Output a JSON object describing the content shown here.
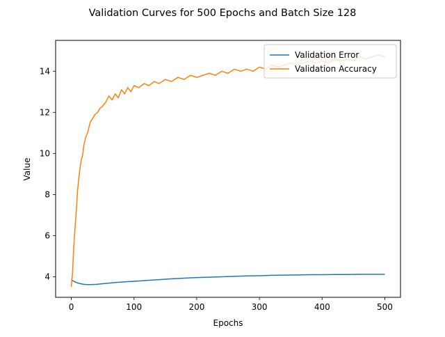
{
  "chart_data": {
    "type": "line",
    "title": "Validation Curves for 500 Epochs and Batch Size 128",
    "xlabel": "Epochs",
    "ylabel": "Value",
    "xlim": [
      -25,
      525
    ],
    "ylim": [
      3.0,
      15.5
    ],
    "xticks": [
      0,
      100,
      200,
      300,
      400,
      500
    ],
    "yticks": [
      4,
      6,
      8,
      10,
      12,
      14
    ],
    "grid": false,
    "legend_position": "top-right",
    "series": [
      {
        "name": "Validation Error",
        "color": "#1f77b4",
        "x": [
          0,
          5,
          10,
          15,
          20,
          25,
          30,
          40,
          50,
          60,
          70,
          80,
          90,
          100,
          120,
          140,
          160,
          180,
          200,
          220,
          240,
          260,
          280,
          300,
          320,
          340,
          360,
          380,
          400,
          420,
          440,
          460,
          480,
          500
        ],
        "values": [
          3.85,
          3.76,
          3.7,
          3.66,
          3.63,
          3.62,
          3.62,
          3.63,
          3.66,
          3.69,
          3.72,
          3.74,
          3.76,
          3.78,
          3.82,
          3.86,
          3.9,
          3.93,
          3.96,
          3.98,
          4.0,
          4.02,
          4.04,
          4.05,
          4.07,
          4.08,
          4.09,
          4.1,
          4.1,
          4.11,
          4.11,
          4.12,
          4.12,
          4.12
        ]
      },
      {
        "name": "Validation Accuracy",
        "color": "#ff7f0e",
        "x": [
          0,
          2,
          4,
          6,
          8,
          10,
          12,
          14,
          16,
          18,
          20,
          23,
          26,
          30,
          34,
          38,
          42,
          46,
          50,
          55,
          60,
          65,
          70,
          75,
          80,
          85,
          90,
          95,
          100,
          108,
          116,
          124,
          132,
          140,
          150,
          160,
          170,
          180,
          190,
          200,
          210,
          220,
          230,
          240,
          250,
          260,
          270,
          280,
          290,
          300,
          310,
          320,
          330,
          340,
          350,
          360,
          370,
          380,
          390,
          400,
          410,
          420,
          430,
          440,
          450,
          460,
          470,
          480,
          490,
          500
        ],
        "values": [
          3.5,
          4.2,
          5.5,
          6.4,
          7.2,
          8.2,
          8.8,
          9.3,
          9.7,
          9.9,
          10.4,
          10.8,
          11.0,
          11.5,
          11.7,
          11.9,
          12.0,
          12.2,
          12.3,
          12.5,
          12.8,
          12.6,
          12.9,
          12.7,
          13.1,
          12.9,
          13.2,
          13.0,
          13.3,
          13.2,
          13.4,
          13.3,
          13.5,
          13.4,
          13.6,
          13.5,
          13.7,
          13.6,
          13.8,
          13.7,
          13.8,
          13.9,
          13.8,
          14.0,
          13.9,
          14.1,
          14.0,
          14.1,
          14.0,
          14.2,
          14.1,
          14.3,
          14.2,
          14.3,
          14.4,
          14.3,
          14.4,
          14.5,
          14.4,
          14.5,
          14.4,
          14.6,
          14.5,
          14.6,
          14.5,
          14.7,
          14.6,
          14.7,
          14.8,
          14.7
        ]
      }
    ]
  }
}
